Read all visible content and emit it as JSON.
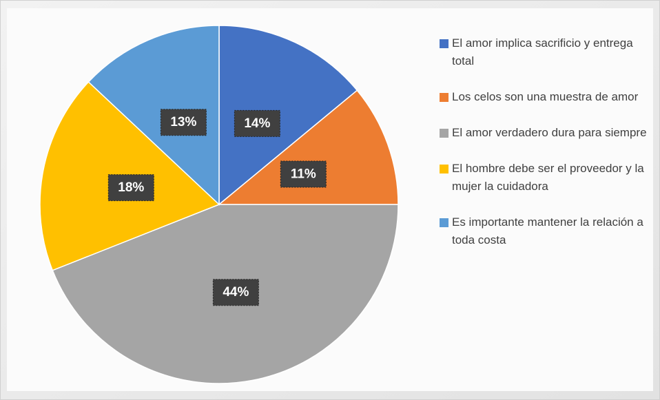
{
  "chart_data": {
    "type": "pie",
    "categories": [
      "El amor implica sacrificio y entrega total",
      "Los celos son una muestra de amor",
      "El amor verdadero dura para siempre",
      "El hombre debe ser el proveedor y la mujer la cuidadora",
      "Es importante mantener la relación a toda costa"
    ],
    "values": [
      14,
      11,
      44,
      18,
      13
    ],
    "value_labels": [
      "14%",
      "11%",
      "44%",
      "18%",
      "13%"
    ],
    "colors": [
      "#4472c4",
      "#ed7d31",
      "#a5a5a5",
      "#ffc000",
      "#5b9bd5"
    ],
    "legend": "right"
  }
}
